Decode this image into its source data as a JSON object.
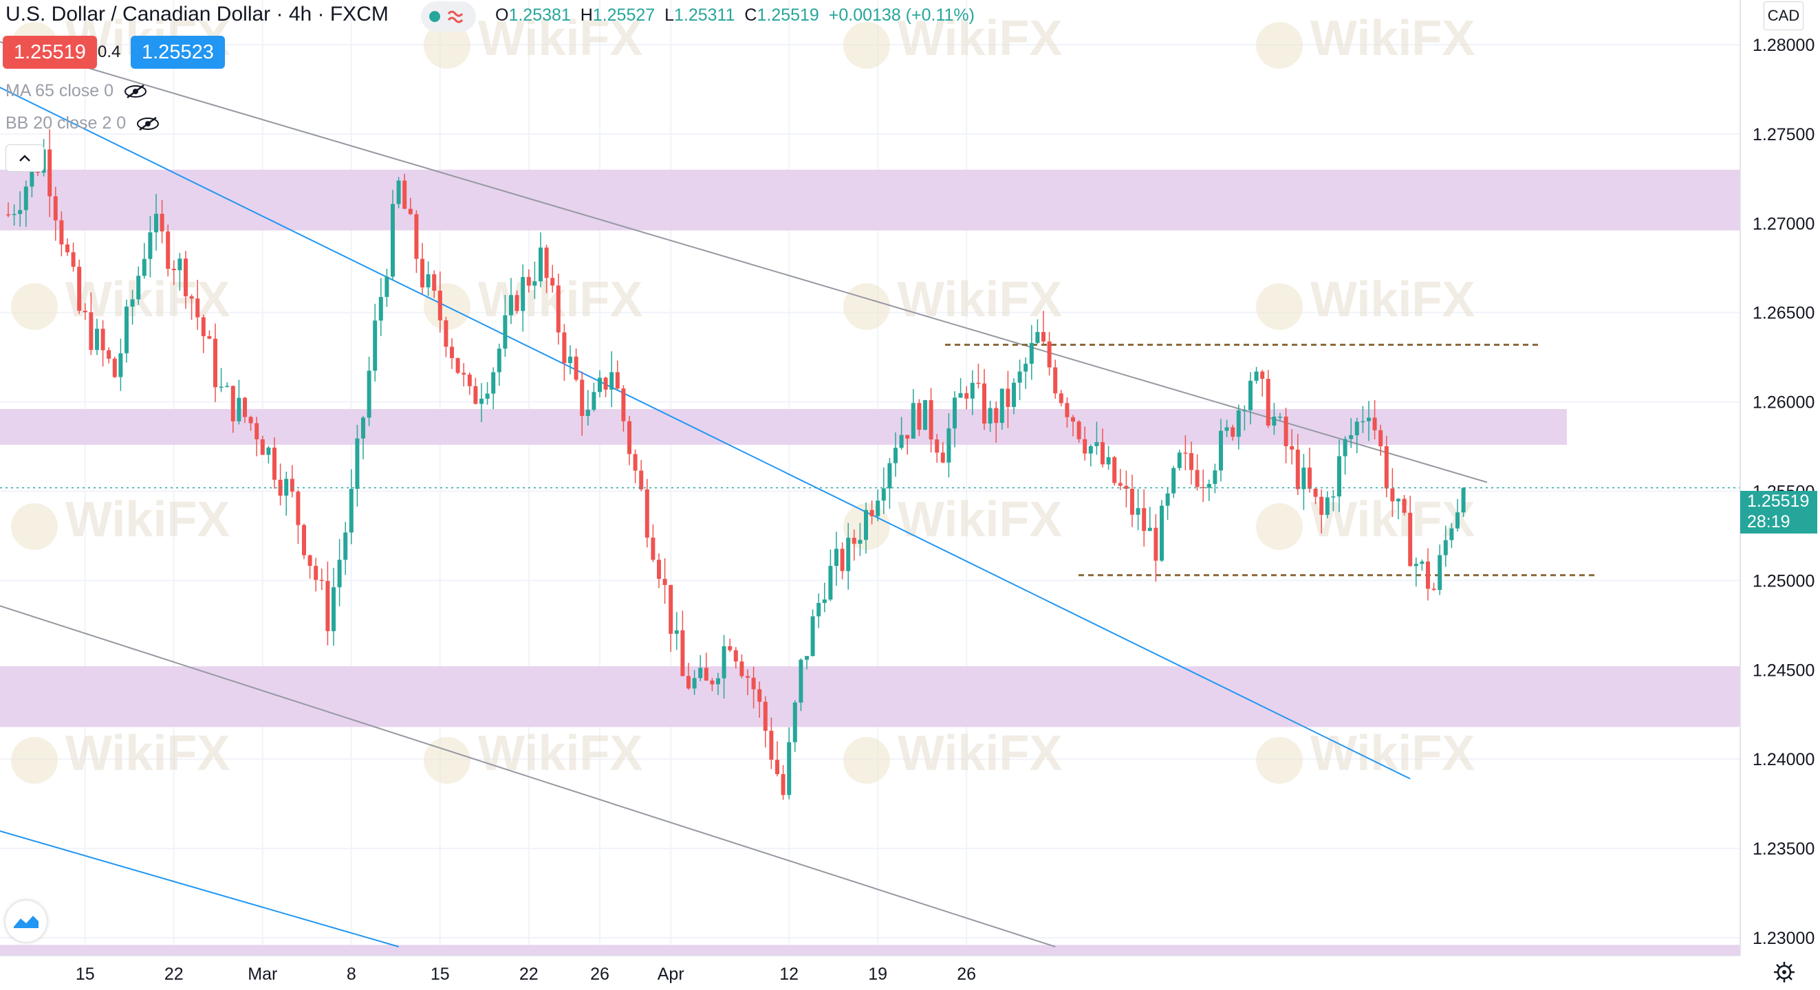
{
  "header": {
    "title": "U.S. Dollar / Canadian Dollar · 4h · FXCM",
    "ohlc": {
      "o_label": "O",
      "o": "1.25381",
      "h_label": "H",
      "h": "1.25527",
      "l_label": "L",
      "l": "1.25311",
      "c_label": "C",
      "c": "1.25519",
      "change": "+0.00138 (+0.11%)"
    },
    "sell_price": "1.25519",
    "spread": "0.4",
    "buy_price": "1.25523",
    "status_icon": "wave-icon"
  },
  "indicators": [
    {
      "label": "MA 65 close 0",
      "icon": "eye-hidden-icon"
    },
    {
      "label": "BB 20 close 2 0",
      "icon": "eye-hidden-icon"
    }
  ],
  "collapse_icon": "chevron-up-icon",
  "axis_button": "CAD",
  "last_price": {
    "value": "1.25519",
    "countdown": "28:19",
    "color": "#26a69a"
  },
  "watermark": "WikiFX",
  "colors": {
    "up": "#26a69a",
    "down": "#ef5350",
    "zone": "#e7d3ee",
    "trend_blue": "#2196f3",
    "trend_grey": "#9598a1",
    "level": "#8b6a3d"
  },
  "chart_data": {
    "type": "candlestick",
    "title": "U.S. Dollar / Canadian Dollar · 4h · FXCM",
    "y_ticks": [
      "1.28000",
      "1.27500",
      "1.27000",
      "1.26500",
      "1.26000",
      "1.25500",
      "1.25000",
      "1.24500",
      "1.24000",
      "1.23500",
      "1.23000"
    ],
    "ylim": [
      1.229,
      1.2825
    ],
    "x_ticks": [
      "15",
      "22",
      "Mar",
      "8",
      "15",
      "22",
      "26",
      "Apr",
      "12",
      "19",
      "26"
    ],
    "price_series": [
      [
        0,
        1.2705
      ],
      [
        6,
        1.274
      ],
      [
        12,
        1.265
      ],
      [
        18,
        1.2615
      ],
      [
        24,
        1.27
      ],
      [
        30,
        1.267
      ],
      [
        36,
        1.2605
      ],
      [
        42,
        1.2585
      ],
      [
        48,
        1.2545
      ],
      [
        54,
        1.248
      ],
      [
        58,
        1.2545
      ],
      [
        62,
        1.264
      ],
      [
        66,
        1.272
      ],
      [
        70,
        1.267
      ],
      [
        74,
        1.264
      ],
      [
        78,
        1.26
      ],
      [
        82,
        1.262
      ],
      [
        86,
        1.266
      ],
      [
        90,
        1.268
      ],
      [
        94,
        1.263
      ],
      [
        98,
        1.259
      ],
      [
        102,
        1.262
      ],
      [
        106,
        1.256
      ],
      [
        110,
        1.251
      ],
      [
        114,
        1.2445
      ],
      [
        118,
        1.244
      ],
      [
        122,
        1.247
      ],
      [
        126,
        1.244
      ],
      [
        129,
        1.2405
      ],
      [
        131,
        1.238
      ],
      [
        134,
        1.245
      ],
      [
        138,
        1.25
      ],
      [
        142,
        1.2515
      ],
      [
        146,
        1.2545
      ],
      [
        150,
        1.258
      ],
      [
        154,
        1.2595
      ],
      [
        158,
        1.2575
      ],
      [
        162,
        1.261
      ],
      [
        166,
        1.259
      ],
      [
        170,
        1.2605
      ],
      [
        174,
        1.2635
      ],
      [
        178,
        1.2605
      ],
      [
        182,
        1.258
      ],
      [
        186,
        1.256
      ],
      [
        190,
        1.254
      ],
      [
        194,
        1.252
      ],
      [
        198,
        1.2565
      ],
      [
        202,
        1.256
      ],
      [
        206,
        1.258
      ],
      [
        210,
        1.2615
      ],
      [
        214,
        1.259
      ],
      [
        218,
        1.256
      ],
      [
        222,
        1.2535
      ],
      [
        226,
        1.2575
      ],
      [
        230,
        1.26
      ],
      [
        234,
        1.2545
      ],
      [
        238,
        1.251
      ],
      [
        241,
        1.2495
      ],
      [
        244,
        1.2535
      ],
      [
        246,
        1.2552
      ]
    ],
    "zones": [
      [
        1.2696,
        1.273
      ],
      [
        1.2576,
        1.2596
      ],
      [
        1.2418,
        1.2452
      ],
      [
        1.229,
        1.2296
      ]
    ],
    "horizontal_levels": [
      1.2632,
      1.2503
    ],
    "trendlines": [
      {
        "color": "grey",
        "from": [
          -10,
          1.281
        ],
        "to": [
          250,
          1.2555
        ]
      },
      {
        "color": "blue",
        "from": [
          -10,
          1.279
        ],
        "to": [
          237,
          1.2389
        ]
      },
      {
        "color": "grey",
        "from": [
          -10,
          1.2495
        ],
        "to": [
          177,
          1.2295
        ]
      },
      {
        "color": "blue",
        "from": [
          -10,
          1.2368
        ],
        "to": [
          66,
          1.2295
        ]
      }
    ],
    "last_value": 1.25519,
    "grid": true
  }
}
